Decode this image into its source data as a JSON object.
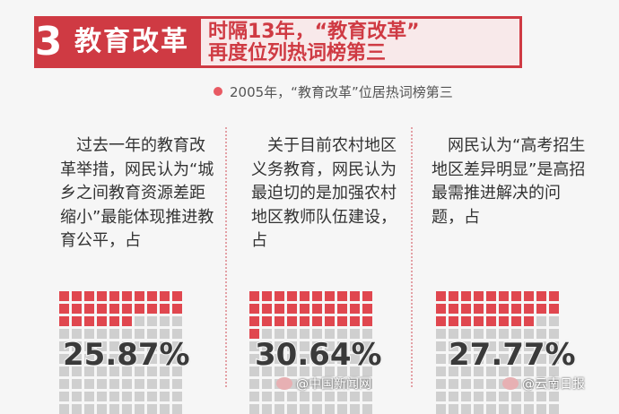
{
  "header": {
    "number": "3",
    "topic": "教育改革",
    "headline_line1": "时隔13年，“教育改革”",
    "headline_line2": "再度位列热词榜第三",
    "accent_color": "#cf3a43"
  },
  "subtitle": "2005年，“教育改革”位居热词榜第三",
  "columns": [
    {
      "text": "　过去一年的教育改革举措，网民认为“城乡之间教育资源差距缩小”最能体现推进教育公平，占",
      "percent_value": 25.87,
      "percent_label": "25.87%"
    },
    {
      "text": "　关于目前农村地区义务教育，网民认为最迫切的是加强农村地区教师队伍建设，占",
      "percent_value": 30.64,
      "percent_label": "30.64%"
    },
    {
      "text": "　网民认为“高考招生地区差异明显”是高招最需推进解决的问题，占",
      "percent_value": 27.77,
      "percent_label": "27.77%"
    }
  ],
  "footer": {
    "left": "@中国新闻网",
    "right": "@云南日报"
  }
}
